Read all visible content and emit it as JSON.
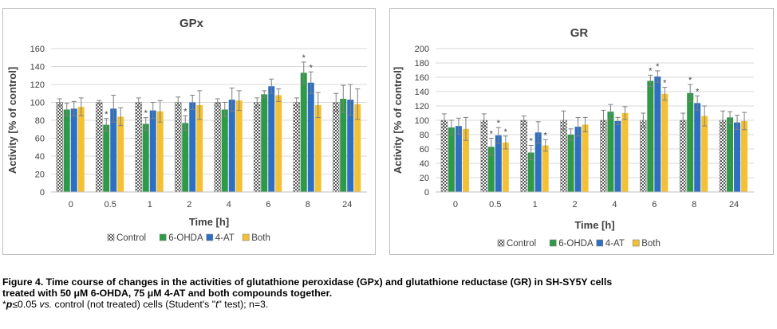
{
  "chart_data": [
    {
      "type": "bar",
      "title": "GPx",
      "xlabel": "Time [h]",
      "ylabel": "Activity [% of control]",
      "ylim": [
        0,
        160
      ],
      "ytick_step": 20,
      "yticks": [
        "0",
        "20",
        "40",
        "60",
        "80",
        "100",
        "120",
        "140",
        "160"
      ],
      "categories": [
        "0",
        "0.5",
        "1",
        "2",
        "4",
        "6",
        "8",
        "24"
      ],
      "grid": true,
      "legend_position": "bottom",
      "series": [
        {
          "name": "Control",
          "color": "#ffffff",
          "pattern": "checker",
          "values": [
            100,
            100,
            100,
            100,
            100,
            100,
            100,
            100
          ],
          "errors": [
            4,
            2,
            5,
            6,
            4,
            5,
            5,
            10
          ]
        },
        {
          "name": "6-OHDA",
          "color": "#2e9a48",
          "values": [
            92,
            75,
            76,
            77,
            92,
            109,
            133,
            104
          ],
          "errors": [
            7,
            7,
            7,
            8,
            8,
            4,
            12,
            15
          ]
        },
        {
          "name": "4-AT",
          "color": "#2f6fc2",
          "values": [
            93,
            93,
            91,
            100,
            103,
            118,
            122,
            103
          ],
          "errors": [
            8,
            15,
            9,
            8,
            13,
            8,
            12,
            17
          ]
        },
        {
          "name": "Both",
          "color": "#f4c134",
          "values": [
            95,
            84,
            90,
            97,
            102,
            108,
            97,
            98
          ],
          "errors": [
            10,
            10,
            12,
            16,
            11,
            7,
            14,
            17
          ]
        }
      ],
      "significance": [
        {
          "category": "0.5",
          "series": "6-OHDA",
          "label": "*"
        },
        {
          "category": "1",
          "series": "6-OHDA",
          "label": "*"
        },
        {
          "category": "2",
          "series": "6-OHDA",
          "label": "*"
        },
        {
          "category": "8",
          "series": "6-OHDA",
          "label": "*"
        },
        {
          "category": "8",
          "series": "4-AT",
          "label": "*"
        }
      ]
    },
    {
      "type": "bar",
      "title": "GR",
      "xlabel": "Time [h]",
      "ylabel": "Activity [% of control]",
      "ylim": [
        0,
        200
      ],
      "ytick_step": 20,
      "yticks": [
        "0",
        "20",
        "40",
        "60",
        "80",
        "100",
        "120",
        "140",
        "160",
        "180",
        "200"
      ],
      "categories": [
        "0",
        "0.5",
        "1",
        "2",
        "4",
        "6",
        "8",
        "24"
      ],
      "grid": true,
      "legend_position": "bottom",
      "series": [
        {
          "name": "Control",
          "color": "#ffffff",
          "pattern": "checker",
          "values": [
            100,
            100,
            100,
            100,
            100,
            100,
            100,
            100
          ],
          "errors": [
            9,
            9,
            6,
            13,
            14,
            10,
            10,
            13
          ]
        },
        {
          "name": "6-OHDA",
          "color": "#2e9a48",
          "values": [
            90,
            63,
            55,
            80,
            112,
            155,
            138,
            104
          ],
          "errors": [
            10,
            12,
            10,
            8,
            10,
            8,
            12,
            8
          ]
        },
        {
          "name": "4-AT",
          "color": "#2f6fc2",
          "values": [
            92,
            79,
            83,
            91,
            99,
            161,
            124,
            97
          ],
          "errors": [
            11,
            11,
            15,
            13,
            5,
            8,
            10,
            10
          ]
        },
        {
          "name": "Both",
          "color": "#f4c134",
          "values": [
            88,
            69,
            65,
            94,
            110,
            137,
            106,
            99
          ],
          "errors": [
            16,
            9,
            8,
            10,
            9,
            9,
            14,
            12
          ]
        }
      ],
      "significance": [
        {
          "category": "0.5",
          "series": "6-OHDA",
          "label": "*"
        },
        {
          "category": "0.5",
          "series": "4-AT",
          "label": "*"
        },
        {
          "category": "0.5",
          "series": "Both",
          "label": "*"
        },
        {
          "category": "1",
          "series": "6-OHDA",
          "label": "*"
        },
        {
          "category": "1",
          "series": "Both",
          "label": "*"
        },
        {
          "category": "6",
          "series": "6-OHDA",
          "label": "*"
        },
        {
          "category": "6",
          "series": "4-AT",
          "label": "*"
        },
        {
          "category": "6",
          "series": "Both",
          "label": "*"
        },
        {
          "category": "8",
          "series": "6-OHDA",
          "label": "*"
        },
        {
          "category": "8",
          "series": "4-AT",
          "label": "*"
        }
      ]
    }
  ],
  "caption": {
    "line1": "Figure 4. Time course of changes in the activities of glutathione peroxidase (GPx) and glutathione reductase (GR) in SH-SY5Y cells",
    "line2": "treated with 50 μM 6-OHDA, 75 μM 4-AT and both compounds together.",
    "note_star": "*",
    "note_p": "p",
    "note_mid": "≤0.05 ",
    "note_vs": "vs.",
    "note_rest": " control (not treated) cells (Student's \"",
    "note_t": "t",
    "note_end": "\" test); n=3."
  }
}
